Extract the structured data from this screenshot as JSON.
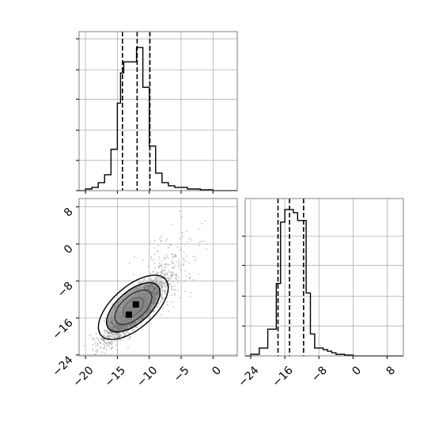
{
  "chart_data": [
    {
      "panel": "top-left",
      "type": "histogram",
      "title": "",
      "xlabel": "",
      "ylabel": "",
      "xlim": [
        -21,
        3.8
      ],
      "ylim": [
        0,
        1.0
      ],
      "grid": true,
      "y_ticks_shown": true,
      "y_tick_labels_shown": false,
      "x_ticks_shown": true,
      "x_tick_labels_shown": false,
      "x_ticks": [
        -20,
        -15,
        -10,
        -5,
        0
      ],
      "y_ticks": [
        0,
        0.19,
        0.38,
        0.575,
        0.76,
        0.955
      ],
      "bin_edges": [
        -21,
        -20,
        -19,
        -18,
        -17,
        -16,
        -15,
        -14.5,
        -14,
        -13,
        -12,
        -11.5,
        -11,
        -10,
        -9,
        -8,
        -7,
        -6,
        -5,
        -4,
        -3,
        -2,
        -1,
        0,
        1,
        2,
        3.8
      ],
      "values": [
        0,
        0.01,
        0.02,
        0.05,
        0.1,
        0.26,
        0.55,
        0.74,
        0.81,
        0.81,
        0.9,
        0.9,
        0.65,
        0.28,
        0.11,
        0.05,
        0.03,
        0.02,
        0.02,
        0.01,
        0.01,
        0.005,
        0.005,
        0,
        0,
        0
      ],
      "quantiles": [
        -14.2,
        -11.9,
        -9.9
      ]
    },
    {
      "panel": "bottom-left",
      "type": "scatter-density",
      "title": "",
      "xlabel": "",
      "ylabel": "",
      "xlim": [
        -21,
        3.8
      ],
      "ylim": [
        -24.2,
        9.8
      ],
      "grid": true,
      "x_ticks": [
        -20,
        -15,
        -10,
        -5,
        0
      ],
      "x_tick_labels": [
        "−20",
        "−15",
        "−10",
        "−5",
        "0"
      ],
      "y_ticks": [
        -24,
        -16,
        -8,
        0,
        8
      ],
      "y_tick_labels": [
        "−24",
        "−16",
        "−8",
        "0",
        "8"
      ],
      "center": [
        -12.1,
        -14.0
      ],
      "spread": [
        2.4,
        3.4
      ],
      "correlation": 0.85,
      "n_points": 2600,
      "contour_levels": [
        0.5,
        1.0,
        1.5,
        2.0
      ],
      "point_color": "#8c8c8c",
      "dark_fill_color": "#000000",
      "mid_fill_color": "#5a5a5a"
    },
    {
      "panel": "bottom-right",
      "type": "histogram",
      "title": "",
      "xlabel": "",
      "ylabel": "",
      "xlim": [
        -25.3,
        11.8
      ],
      "ylim": [
        0,
        1.0
      ],
      "grid": true,
      "y_ticks_shown": true,
      "y_tick_labels_shown": false,
      "y_ticks": [
        0.19,
        0.38,
        0.575,
        0.76
      ],
      "x_ticks": [
        -24,
        -16,
        -8,
        0,
        8
      ],
      "x_tick_labels": [
        "−24",
        "−16",
        "−8",
        "0",
        "8"
      ],
      "bin_edges": [
        -25.3,
        -24,
        -22,
        -20,
        -18,
        -17,
        -16,
        -15,
        -14,
        -13,
        -12,
        -11,
        -10,
        -9,
        -8,
        -7,
        -6,
        -5,
        -4,
        -3,
        -2,
        -1,
        0,
        1,
        11.8
      ],
      "values": [
        0,
        0.01,
        0.05,
        0.17,
        0.46,
        0.85,
        0.93,
        0.93,
        0.91,
        0.86,
        0.86,
        0.4,
        0.14,
        0.05,
        0.05,
        0.04,
        0.03,
        0.02,
        0.01,
        0.01,
        0.005,
        0.005,
        0,
        0
      ],
      "quantiles": [
        -17.6,
        -14.9,
        -11.6
      ]
    }
  ]
}
